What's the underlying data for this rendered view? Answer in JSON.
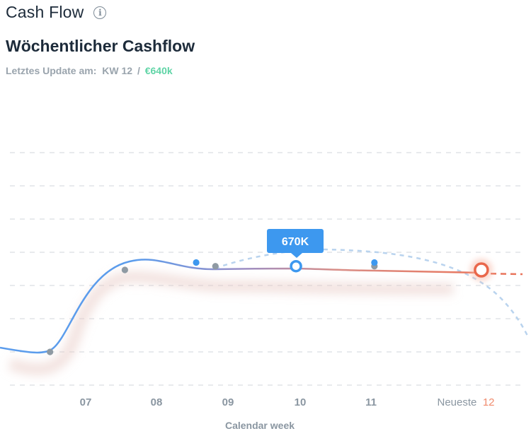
{
  "header": {
    "title": "Cash Flow",
    "info_icon": "info-circle-icon"
  },
  "subtitle": "Wöchentlicher Cashflow",
  "update": {
    "label": "Letztes Update am:",
    "week": "KW 12",
    "separator": "/",
    "amount": "€640k"
  },
  "colors": {
    "actual_line": "#5b9cec",
    "latest_line": "#e9755c",
    "forecast": "#b9d3ee",
    "grid": "#d9dde2",
    "amount": "#5fd4a6"
  },
  "chart_data": {
    "type": "line",
    "xlabel": "Calendar week",
    "categories": [
      "07",
      "08",
      "09",
      "10",
      "11",
      "Neueste 12"
    ],
    "latest_prefix": "Neueste",
    "latest_week": "12",
    "tooltip": "670K",
    "grid": true,
    "series": [
      {
        "role": "actual",
        "points": [
          [
            6.5,
            440
          ],
          [
            7.55,
            660
          ],
          [
            8.82,
            670
          ],
          [
            9.95,
            670
          ],
          [
            11.05,
            670
          ],
          [
            12.55,
            660
          ]
        ]
      },
      {
        "role": "forecast",
        "points": [
          [
            8.55,
            680
          ],
          [
            11.05,
            680
          ]
        ]
      }
    ]
  }
}
